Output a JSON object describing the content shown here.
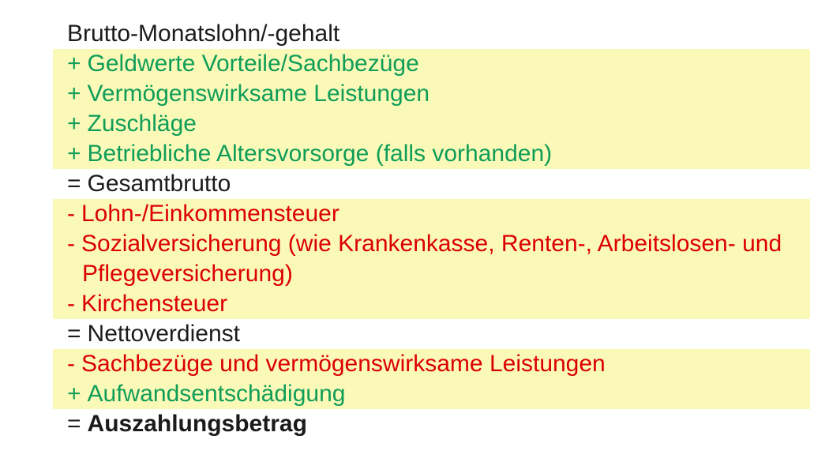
{
  "palette": {
    "background": "#ffffff",
    "highlight_yellow": "#fbf9b8",
    "addition_green": "#0f9d58",
    "deduction_red": "#db0000",
    "text_black": "#1b1b1b"
  },
  "groups": [
    {
      "highlight": false,
      "items": [
        {
          "sign": "",
          "text": "Brutto-Monatslohn/-gehalt",
          "color": "black",
          "bold": false
        }
      ]
    },
    {
      "highlight": true,
      "items": [
        {
          "sign": "+",
          "text": "Geldwerte Vorteile/Sachbezüge",
          "color": "green",
          "bold": false
        },
        {
          "sign": "+",
          "text": "Vermögenswirksame Leistungen",
          "color": "green",
          "bold": false
        },
        {
          "sign": "+",
          "text": "Zuschläge",
          "color": "green",
          "bold": false
        },
        {
          "sign": "+",
          "text": "Betriebliche Altersvorsorge (falls vorhanden)",
          "color": "green",
          "bold": false
        }
      ]
    },
    {
      "highlight": false,
      "items": [
        {
          "sign": "=",
          "text": "Gesamtbrutto",
          "color": "black",
          "bold": false
        }
      ]
    },
    {
      "highlight": true,
      "items": [
        {
          "sign": "-",
          "text": "Lohn-/Einkommensteuer",
          "color": "red",
          "bold": false
        },
        {
          "sign": "-",
          "text": "Sozialversicherung (wie Krankenkasse, Renten-, Arbeitslosen- und Pflegeversicherung)",
          "color": "red",
          "bold": false
        },
        {
          "sign": "-",
          "text": "Kirchensteuer",
          "color": "red",
          "bold": false
        }
      ]
    },
    {
      "highlight": false,
      "items": [
        {
          "sign": "=",
          "text": "Nettoverdienst",
          "color": "black",
          "bold": false
        }
      ]
    },
    {
      "highlight": true,
      "items": [
        {
          "sign": "-",
          "text": "Sachbezüge und vermögenswirksame Leistungen",
          "color": "red",
          "bold": false
        },
        {
          "sign": "+",
          "text": "Aufwandsentschädigung",
          "color": "green",
          "bold": false
        }
      ]
    },
    {
      "highlight": false,
      "items": [
        {
          "sign": "=",
          "text": "Auszahlungsbetrag",
          "color": "black",
          "bold": true
        }
      ]
    }
  ]
}
